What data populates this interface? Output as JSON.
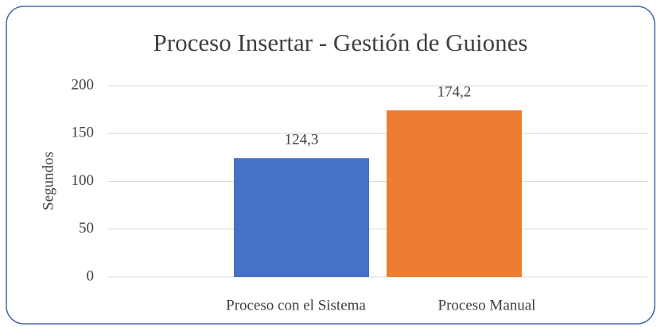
{
  "chart_data": {
    "type": "bar",
    "title": "Proceso Insertar - Gestión de Guiones",
    "y_label": "Segundos",
    "categories": [
      null
    ],
    "series": [
      {
        "name": "Proceso con el Sistema",
        "color": "#4472c4",
        "values": [
          124.3
        ],
        "value_labels": [
          "124,3"
        ]
      },
      {
        "name": "Proceso Manual",
        "color": "#ed7d31",
        "values": [
          174.2
        ],
        "value_labels": [
          "174,2"
        ]
      }
    ],
    "ylim": [
      0,
      200
    ],
    "yticks": [
      0,
      50,
      100,
      150,
      200
    ],
    "grid": true,
    "legend": "bottom"
  }
}
